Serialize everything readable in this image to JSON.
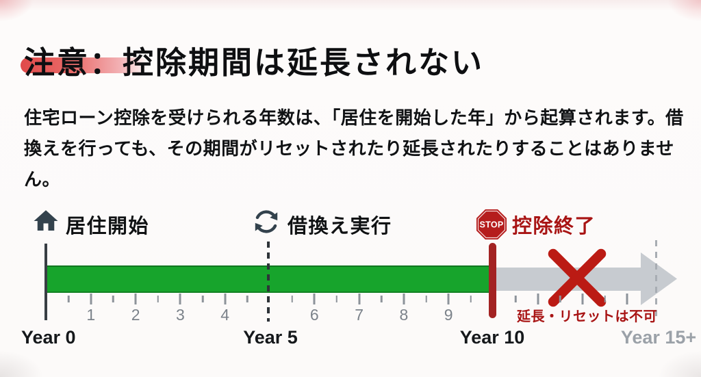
{
  "slide": {
    "title": "注意：控除期間は延長されない",
    "body_lines": [
      "住宅ローン控除を受けられる年数は、「居住を開始した年」から起算されます。借",
      "換えを行っても、その期間がリセットされたり延長されたりすることはありませ",
      "ん。"
    ]
  },
  "timeline": {
    "events": [
      {
        "id": "start",
        "icon": "house-icon",
        "label": "居住開始"
      },
      {
        "id": "refinance",
        "icon": "refresh-icon",
        "label": "借換え実行"
      },
      {
        "id": "end",
        "icon": "stop-sign-icon",
        "label": "控除終了",
        "stop_text": "STOP"
      }
    ],
    "annotation": "延長・リセットは不可",
    "year_labels": {
      "y0": "Year 0",
      "y5": "Year 5",
      "y10": "Year 10",
      "y15": "Year 15+"
    },
    "axis": {
      "major_tick_years": [
        1,
        2,
        3,
        4,
        6,
        7,
        8,
        9,
        11,
        12,
        13
      ],
      "minor_tick_years": [
        0.5,
        1.5,
        2.5,
        3.5,
        4.5,
        5.5,
        6.5,
        7.5,
        8.5,
        9.5,
        10.5,
        11.5,
        12.5
      ],
      "numbered_years": [
        1,
        2,
        3,
        4,
        6,
        7,
        8,
        9
      ]
    },
    "colors": {
      "active_bar_green": "#17a42c",
      "inactive_bar_gray": "#c7cbd0",
      "marker_red": "#a32323",
      "stop_sign_red": "#b51d1d",
      "accent_text_red": "#a81414",
      "cross_red": "#bb1b14",
      "icon_dark": "#33424d",
      "tick_gray": "#8d939a",
      "muted_label_gray": "#9ba1a8",
      "highlight_red": "#e04a4a"
    }
  }
}
